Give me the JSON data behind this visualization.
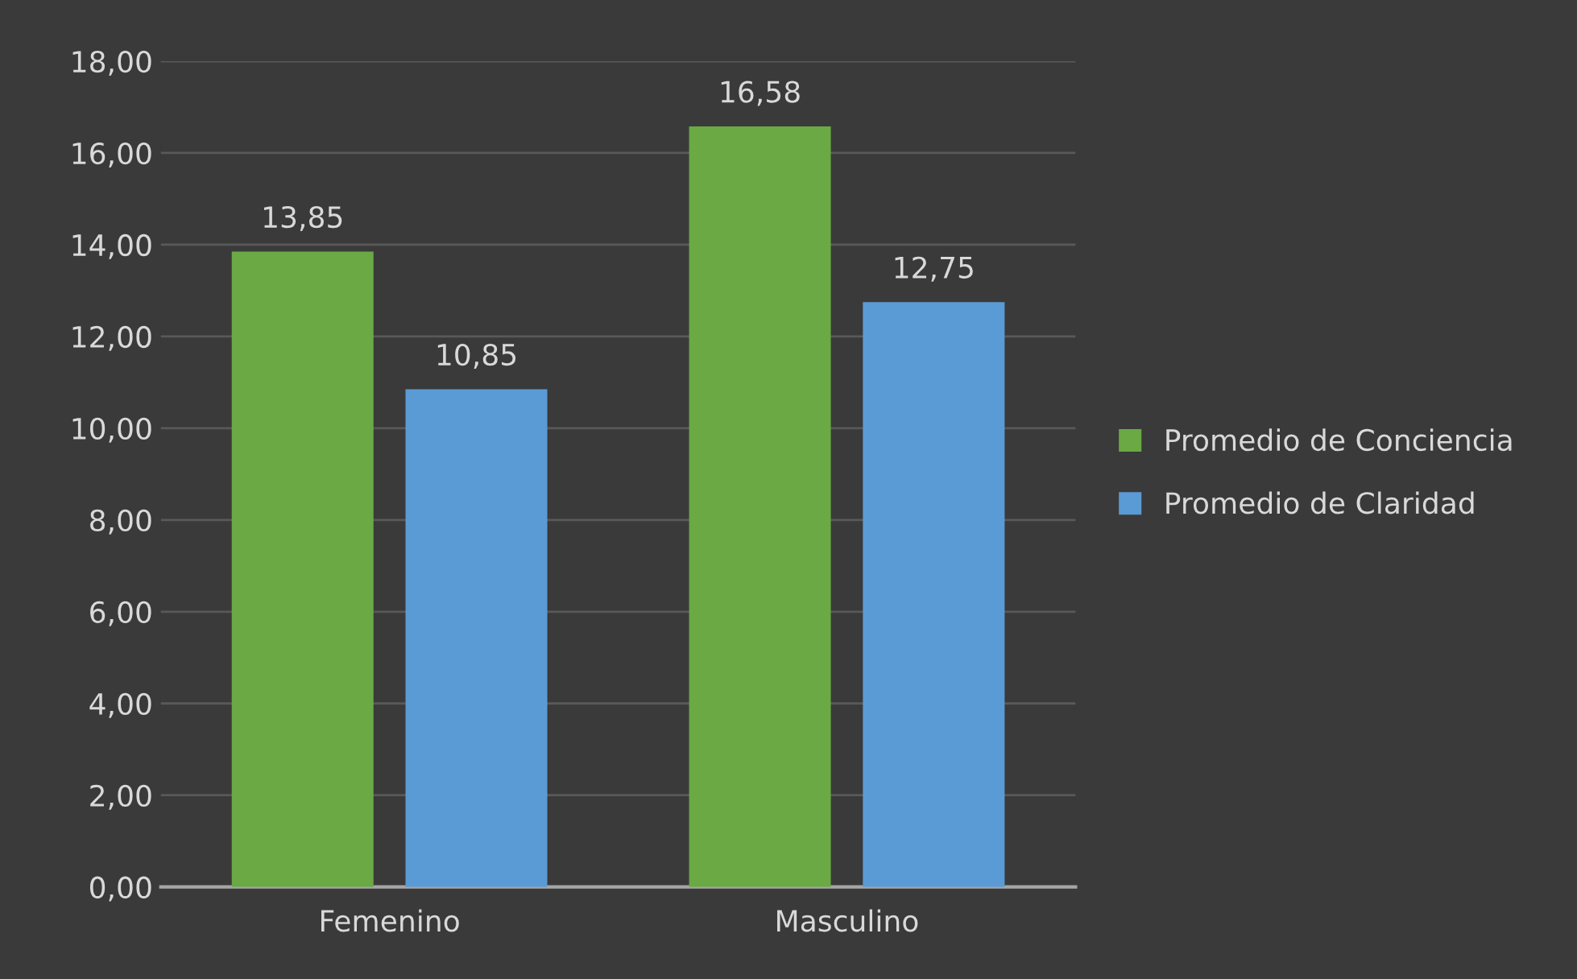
{
  "chart_data": {
    "type": "bar",
    "categories": [
      "Femenino",
      "Masculino"
    ],
    "series": [
      {
        "name": "Promedio de Conciencia",
        "color": "#6aa944",
        "values": [
          13.85,
          16.58
        ],
        "value_labels": [
          "13,85",
          "16,58"
        ]
      },
      {
        "name": "Promedio de Claridad",
        "color": "#5b9bd5",
        "values": [
          10.85,
          12.75
        ],
        "value_labels": [
          "10,85",
          "12,75"
        ]
      }
    ],
    "ylim": [
      0,
      18
    ],
    "yticks": [
      {
        "value": 0,
        "label": "0,00"
      },
      {
        "value": 2,
        "label": "2,00"
      },
      {
        "value": 4,
        "label": "4,00"
      },
      {
        "value": 6,
        "label": "6,00"
      },
      {
        "value": 8,
        "label": "8,00"
      },
      {
        "value": 10,
        "label": "10,00"
      },
      {
        "value": 12,
        "label": "12,00"
      },
      {
        "value": 14,
        "label": "14,00"
      },
      {
        "value": 16,
        "label": "16,00"
      },
      {
        "value": 18,
        "label": "18,00"
      }
    ],
    "grid": "y",
    "legend": "right"
  }
}
